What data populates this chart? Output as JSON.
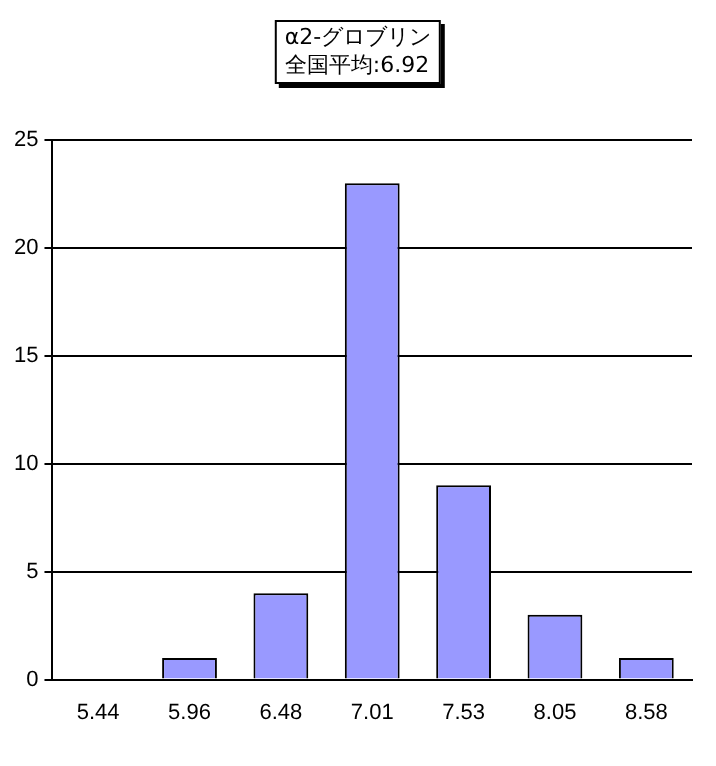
{
  "chart_data": {
    "type": "bar",
    "title": "α2-グロブリン",
    "subtitle": "全国平均:6.92",
    "categories": [
      "5.44",
      "5.96",
      "6.48",
      "7.01",
      "7.53",
      "8.05",
      "8.58"
    ],
    "values": [
      0,
      1,
      4,
      23,
      9,
      3,
      1
    ],
    "color": "#9999ff",
    "ylim": [
      0,
      25
    ],
    "yticks": [
      0,
      5,
      10,
      15,
      20,
      25
    ],
    "grid": "y"
  }
}
